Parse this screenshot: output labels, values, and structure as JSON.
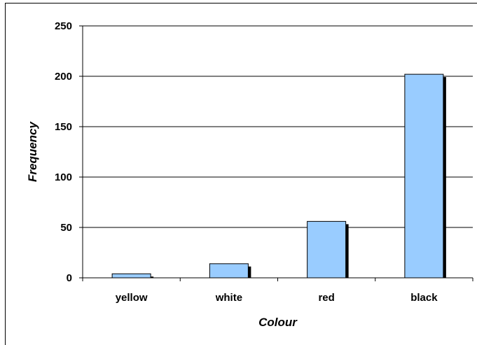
{
  "chart_data": {
    "type": "bar",
    "categories": [
      "yellow",
      "white",
      "red",
      "black"
    ],
    "values": [
      4,
      14,
      56,
      202
    ],
    "title": "",
    "xlabel": "Colour",
    "ylabel": "Frequency",
    "ylim": [
      0,
      250
    ],
    "yticks": [
      0,
      50,
      100,
      150,
      200,
      250
    ],
    "grid": true,
    "legend": "none",
    "colors": {
      "bar_fill": "#99ccff",
      "bar_stroke": "#000000",
      "bar_shadow": "#000000",
      "gridline": "#000000",
      "background": "#ffffff"
    }
  }
}
